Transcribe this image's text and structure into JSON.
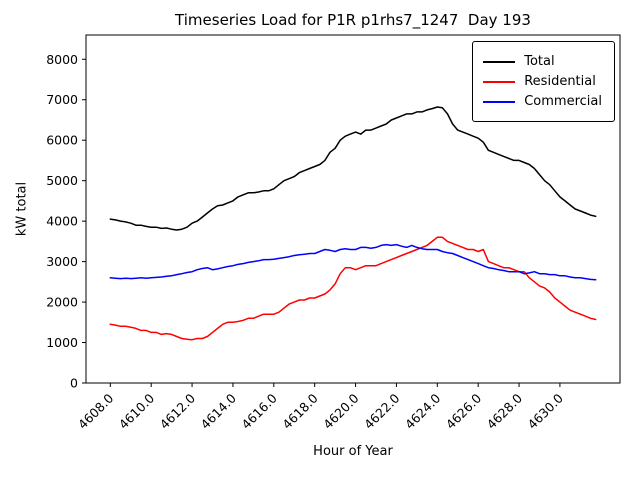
{
  "title": "Timeseries Load for P1R p1rhs7_1247  Day 193",
  "chart_data": {
    "type": "line",
    "title": "Timeseries Load for P1R p1rhs7_1247  Day 193",
    "xlabel": "Hour of Year",
    "ylabel": "kW total",
    "grid": false,
    "legend_position": "upper right",
    "xlim": [
      4606.81,
      4632.94
    ],
    "ylim": [
      0,
      8600
    ],
    "xticks": [
      4608,
      4610,
      4612,
      4614,
      4616,
      4618,
      4620,
      4622,
      4624,
      4626,
      4628,
      4630
    ],
    "xtick_labels": [
      "4608.0",
      "4610.0",
      "4612.0",
      "4614.0",
      "4616.0",
      "4618.0",
      "4620.0",
      "4622.0",
      "4624.0",
      "4626.0",
      "4628.0",
      "4630.0"
    ],
    "yticks": [
      0,
      1000,
      2000,
      3000,
      4000,
      5000,
      6000,
      7000,
      8000
    ],
    "x": [
      4608.0,
      4608.25,
      4608.5,
      4608.75,
      4609.0,
      4609.25,
      4609.5,
      4609.75,
      4610.0,
      4610.25,
      4610.5,
      4610.75,
      4611.0,
      4611.25,
      4611.5,
      4611.75,
      4612.0,
      4612.25,
      4612.5,
      4612.75,
      4613.0,
      4613.25,
      4613.5,
      4613.75,
      4614.0,
      4614.25,
      4614.5,
      4614.75,
      4615.0,
      4615.25,
      4615.5,
      4615.75,
      4616.0,
      4616.25,
      4616.5,
      4616.75,
      4617.0,
      4617.25,
      4617.5,
      4617.75,
      4618.0,
      4618.25,
      4618.5,
      4618.75,
      4619.0,
      4619.25,
      4619.5,
      4619.75,
      4620.0,
      4620.25,
      4620.5,
      4620.75,
      4621.0,
      4621.25,
      4621.5,
      4621.75,
      4622.0,
      4622.25,
      4622.5,
      4622.75,
      4623.0,
      4623.25,
      4623.5,
      4623.75,
      4624.0,
      4624.25,
      4624.5,
      4624.75,
      4625.0,
      4625.25,
      4625.5,
      4625.75,
      4626.0,
      4626.25,
      4626.5,
      4626.75,
      4627.0,
      4627.25,
      4627.5,
      4627.75,
      4628.0,
      4628.25,
      4628.5,
      4628.75,
      4629.0,
      4629.25,
      4629.5,
      4629.75,
      4630.0,
      4630.25,
      4630.5,
      4630.75,
      4631.0,
      4631.25,
      4631.5,
      4631.75
    ],
    "series": [
      {
        "name": "Total",
        "color": "#000000",
        "values": [
          4050,
          4030,
          4000,
          3980,
          3950,
          3900,
          3900,
          3870,
          3850,
          3850,
          3820,
          3830,
          3800,
          3780,
          3800,
          3850,
          3950,
          4000,
          4100,
          4200,
          4300,
          4380,
          4400,
          4450,
          4500,
          4600,
          4650,
          4700,
          4700,
          4720,
          4750,
          4750,
          4800,
          4900,
          5000,
          5050,
          5100,
          5200,
          5250,
          5300,
          5350,
          5400,
          5500,
          5700,
          5800,
          6000,
          6100,
          6150,
          6200,
          6150,
          6250,
          6250,
          6300,
          6350,
          6400,
          6500,
          6550,
          6600,
          6650,
          6650,
          6700,
          6700,
          6750,
          6780,
          6820,
          6800,
          6650,
          6400,
          6250,
          6200,
          6150,
          6100,
          6050,
          5950,
          5750,
          5700,
          5650,
          5600,
          5550,
          5500,
          5500,
          5450,
          5400,
          5300,
          5150,
          5000,
          4900,
          4750,
          4600,
          4500,
          4400,
          4300,
          4250,
          4200,
          4150,
          4120
        ]
      },
      {
        "name": "Residential",
        "color": "#ff0000",
        "values": [
          1450,
          1430,
          1400,
          1400,
          1380,
          1350,
          1300,
          1300,
          1250,
          1250,
          1200,
          1220,
          1200,
          1150,
          1100,
          1080,
          1070,
          1100,
          1100,
          1150,
          1250,
          1350,
          1450,
          1500,
          1500,
          1520,
          1550,
          1600,
          1600,
          1650,
          1700,
          1700,
          1700,
          1750,
          1850,
          1950,
          2000,
          2050,
          2050,
          2100,
          2100,
          2150,
          2200,
          2300,
          2450,
          2700,
          2850,
          2850,
          2800,
          2850,
          2900,
          2900,
          2900,
          2950,
          3000,
          3050,
          3100,
          3150,
          3200,
          3250,
          3300,
          3350,
          3400,
          3500,
          3600,
          3600,
          3500,
          3450,
          3400,
          3350,
          3300,
          3300,
          3250,
          3300,
          3000,
          2950,
          2900,
          2850,
          2850,
          2800,
          2750,
          2750,
          2600,
          2500,
          2400,
          2350,
          2250,
          2100,
          2000,
          1900,
          1800,
          1750,
          1700,
          1650,
          1600,
          1570
        ]
      },
      {
        "name": "Commercial",
        "color": "#0000ff",
        "values": [
          2600,
          2590,
          2580,
          2590,
          2580,
          2590,
          2600,
          2590,
          2600,
          2610,
          2620,
          2640,
          2650,
          2680,
          2700,
          2730,
          2750,
          2800,
          2830,
          2850,
          2800,
          2820,
          2850,
          2880,
          2900,
          2930,
          2950,
          2980,
          3000,
          3020,
          3050,
          3050,
          3060,
          3080,
          3100,
          3120,
          3150,
          3170,
          3180,
          3200,
          3200,
          3250,
          3300,
          3280,
          3250,
          3300,
          3320,
          3300,
          3300,
          3350,
          3350,
          3330,
          3350,
          3400,
          3420,
          3400,
          3420,
          3380,
          3350,
          3400,
          3350,
          3320,
          3300,
          3300,
          3300,
          3250,
          3220,
          3200,
          3150,
          3100,
          3050,
          3000,
          2950,
          2900,
          2850,
          2830,
          2800,
          2780,
          2750,
          2750,
          2750,
          2700,
          2720,
          2750,
          2700,
          2700,
          2680,
          2680,
          2650,
          2650,
          2620,
          2600,
          2600,
          2580,
          2560,
          2550
        ]
      }
    ]
  }
}
